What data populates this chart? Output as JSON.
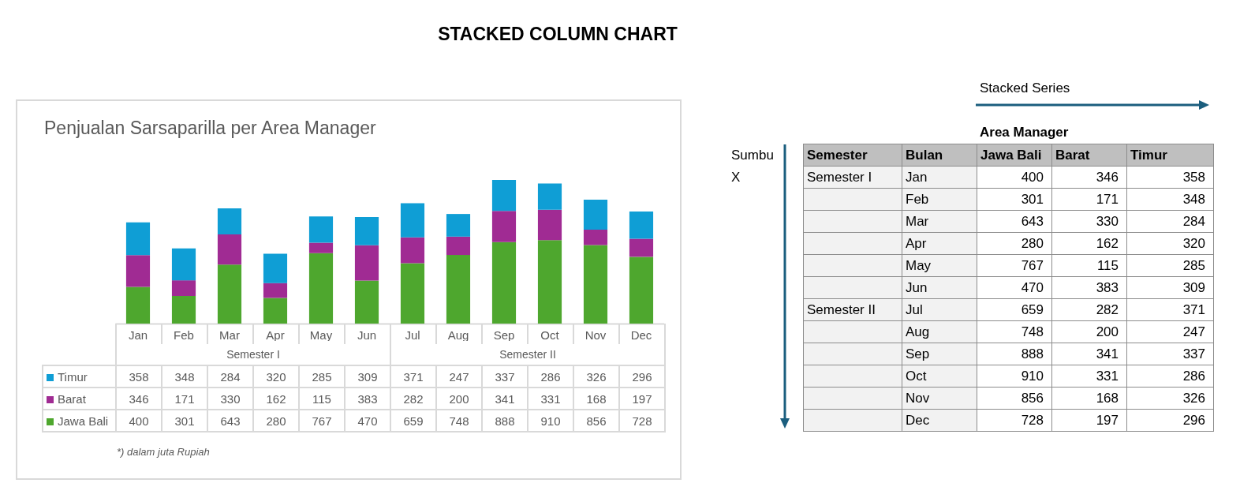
{
  "chart_data": [
    {
      "type": "bar",
      "title": "STACKED COLUMN CHART",
      "subtitle": "Penjualan Sarsaparilla per Area Manager",
      "categories": [
        "Jan",
        "Feb",
        "Mar",
        "Apr",
        "May",
        "Jun",
        "Jul",
        "Aug",
        "Sep",
        "Oct",
        "Nov",
        "Dec"
      ],
      "series": [
        {
          "name": "Jawa Bali",
          "color": "#4ea72e",
          "values": [
            400,
            301,
            643,
            280,
            767,
            470,
            659,
            748,
            888,
            910,
            856,
            728
          ]
        },
        {
          "name": "Barat",
          "color": "#a02b93",
          "values": [
            346,
            171,
            330,
            162,
            115,
            383,
            282,
            200,
            341,
            331,
            168,
            197
          ]
        },
        {
          "name": "Timur",
          "color": "#0f9ed5",
          "values": [
            358,
            348,
            284,
            320,
            285,
            309,
            371,
            247,
            337,
            286,
            326,
            296
          ]
        }
      ],
      "stacked": true,
      "data_labels": true,
      "legend": "bottom left",
      "tick_labels": "x",
      "annotations": [
        "Semester I",
        "Semester II",
        "*) dalam juta Rupiah"
      ]
    },
    {
      "type": "other",
      "categories": [
        "Jan",
        "Feb",
        "Mar",
        "Apr",
        "May",
        "Jun",
        "Jul",
        "Aug",
        "Sep",
        "Oct",
        "Nov",
        "Dec"
      ],
      "series": [
        {
          "name": "Jawa Bali",
          "values": [
            400,
            301,
            643,
            280,
            767,
            470,
            659,
            748,
            888,
            910,
            856,
            728
          ]
        },
        {
          "name": "Barat",
          "values": [
            346,
            171,
            330,
            162,
            115,
            383,
            282,
            200,
            341,
            331,
            168,
            197
          ]
        },
        {
          "name": "Timur",
          "values": [
            358,
            348,
            284,
            320,
            285,
            309,
            371,
            247,
            337,
            286,
            326,
            296
          ]
        }
      ],
      "data_labels": true,
      "annotations": [
        "Semester I",
        "Semester II",
        "Semester",
        "Bulan",
        "Area Manager",
        "Stacked Series",
        "Sumbu X"
      ]
    }
  ]
}
